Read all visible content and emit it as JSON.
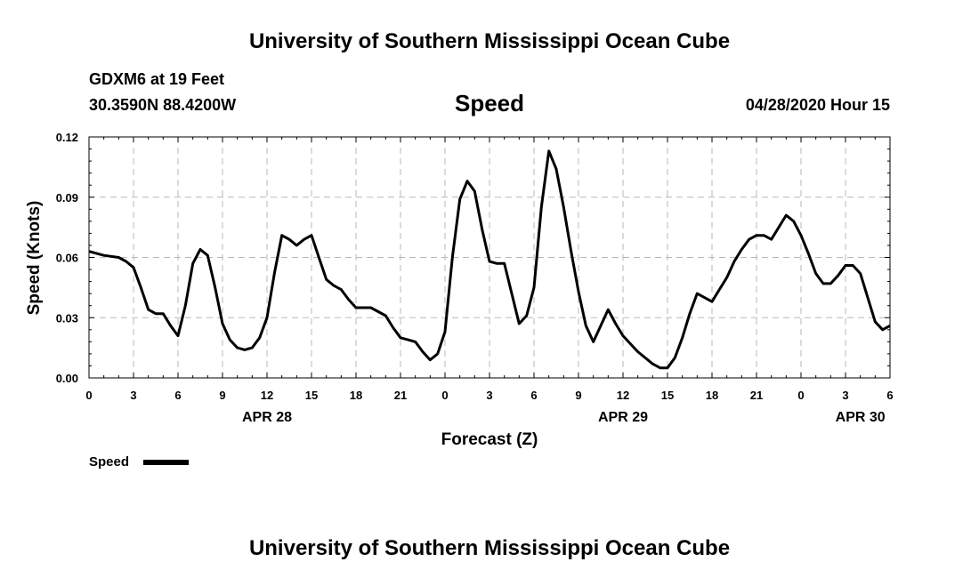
{
  "header": {
    "title_top": "University of Southern Mississippi Ocean Cube",
    "station": "GDXM6 at 19 Feet",
    "location": "30.3590N 88.4200W",
    "timestamp": "04/28/2020 Hour 15",
    "title_bottom": "University of Southern Mississippi Ocean Cube"
  },
  "chart_data": {
    "type": "line",
    "title": "Speed",
    "xlabel": "Forecast (Z)",
    "ylabel": "Speed (Knots)",
    "xlim": [
      0,
      54
    ],
    "ylim": [
      0,
      0.12
    ],
    "grid": true,
    "x_tick_hours": [
      0,
      3,
      6,
      9,
      12,
      15,
      18,
      21,
      24,
      27,
      30,
      33,
      36,
      39,
      42,
      45,
      48,
      51,
      54
    ],
    "x_tick_labels": [
      "0",
      "3",
      "6",
      "9",
      "12",
      "15",
      "18",
      "21",
      "0",
      "3",
      "6",
      "9",
      "12",
      "15",
      "18",
      "21",
      "0",
      "3",
      "6"
    ],
    "y_ticks": [
      0.0,
      0.03,
      0.06,
      0.09,
      0.12
    ],
    "y_tick_labels": [
      "0.00",
      "0.03",
      "0.06",
      "0.09",
      "0.12"
    ],
    "day_labels": [
      {
        "label": "APR 28",
        "hour": 12
      },
      {
        "label": "APR 29",
        "hour": 36
      },
      {
        "label": "APR 30",
        "hour": 52
      }
    ],
    "legend": {
      "position": "bottom-left",
      "entries": [
        "Speed"
      ]
    },
    "series": [
      {
        "name": "Speed",
        "color": "#000000",
        "x": [
          0,
          1,
          2,
          2.5,
          3,
          3.5,
          4,
          4.5,
          5,
          5.5,
          6,
          6.5,
          7,
          7.5,
          8,
          8.5,
          9,
          9.5,
          10,
          10.5,
          11,
          11.5,
          12,
          12.5,
          13,
          13.5,
          14,
          14.5,
          15,
          15.5,
          16,
          16.5,
          17,
          17.5,
          18,
          18.5,
          19,
          19.5,
          20,
          20.5,
          21,
          21.5,
          22,
          22.5,
          23,
          23.5,
          24,
          24.5,
          25,
          25.5,
          26,
          26.5,
          27,
          27.5,
          28,
          28.5,
          29,
          29.5,
          30,
          30.5,
          31,
          31.5,
          32,
          32.5,
          33,
          33.5,
          34,
          34.5,
          35,
          35.5,
          36,
          36.5,
          37,
          37.5,
          38,
          38.5,
          39,
          39.5,
          40,
          40.5,
          41,
          41.5,
          42,
          42.5,
          43,
          43.5,
          44,
          44.5,
          45,
          45.5,
          46,
          46.5,
          47,
          47.5,
          48,
          48.5,
          49,
          49.5,
          50,
          50.5,
          51,
          51.5,
          52,
          52.5,
          53,
          53.5,
          54
        ],
        "y": [
          0.063,
          0.061,
          0.06,
          0.058,
          0.055,
          0.045,
          0.034,
          0.032,
          0.032,
          0.026,
          0.021,
          0.036,
          0.057,
          0.064,
          0.061,
          0.045,
          0.027,
          0.019,
          0.015,
          0.014,
          0.015,
          0.02,
          0.03,
          0.052,
          0.071,
          0.069,
          0.066,
          0.069,
          0.071,
          0.06,
          0.049,
          0.046,
          0.044,
          0.039,
          0.035,
          0.035,
          0.035,
          0.033,
          0.031,
          0.025,
          0.02,
          0.019,
          0.018,
          0.013,
          0.009,
          0.012,
          0.023,
          0.06,
          0.089,
          0.098,
          0.093,
          0.074,
          0.058,
          0.057,
          0.057,
          0.042,
          0.027,
          0.031,
          0.045,
          0.085,
          0.113,
          0.104,
          0.085,
          0.063,
          0.043,
          0.026,
          0.018,
          0.026,
          0.034,
          0.027,
          0.021,
          0.017,
          0.013,
          0.01,
          0.007,
          0.005,
          0.005,
          0.01,
          0.02,
          0.032,
          0.042,
          0.04,
          0.038,
          0.044,
          0.05,
          0.058,
          0.064,
          0.069,
          0.071,
          0.071,
          0.069,
          0.075,
          0.081,
          0.078,
          0.071,
          0.062,
          0.052,
          0.047,
          0.047,
          0.051,
          0.056,
          0.056,
          0.052,
          0.04,
          0.028,
          0.024,
          0.026
        ]
      }
    ]
  }
}
